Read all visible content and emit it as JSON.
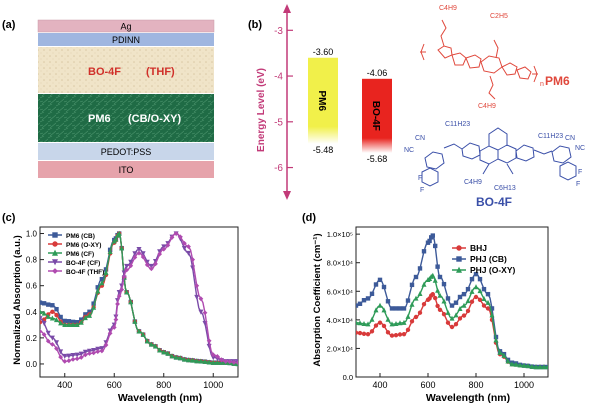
{
  "panels": {
    "a": {
      "label": "(a)",
      "layers": [
        {
          "name": "Ag",
          "color": "#e3b3c0"
        },
        {
          "name": "PDINN",
          "color": "#9fb6e0"
        },
        {
          "name": "BO-4F",
          "name2": "(THF)",
          "color": "#f0e4c8"
        },
        {
          "name": "PM6",
          "name2": "(CB/O-XY)",
          "color": "#1f6b45"
        },
        {
          "name": "PEDOT:PSS",
          "color": "#c8d6ea"
        },
        {
          "name": "ITO",
          "color": "#e6a3ab"
        }
      ]
    },
    "b": {
      "label": "(b)",
      "axis_label": "Energy Level (eV)",
      "ticks": [
        "-3",
        "-4",
        "-5",
        "-6"
      ],
      "tick_values": [
        -3,
        -4,
        -5,
        -6
      ],
      "axis_range": [
        -2.6,
        -6.6
      ],
      "bars": [
        {
          "name": "PM6",
          "lumo": "-3.60",
          "homo": "-5.48",
          "lumo_value": -3.6,
          "homo_value": -5.48,
          "color": "#f1f04a"
        },
        {
          "name": "BO-4F",
          "lumo": "-4.06",
          "homo": "-5.68",
          "lumo_value": -4.06,
          "homo_value": -5.68,
          "color": "#e8241f"
        }
      ],
      "molecule_pm6": {
        "name": "PM6",
        "sidechain_top_left": "C4H9",
        "sidechain_top_right": "C2H5",
        "sidechain_bottom": "C4H9",
        "n_label": "n",
        "color": "#e0483c"
      },
      "molecule_bo4f": {
        "name": "BO-4F",
        "sidechain_1": "C11H23",
        "sidechain_2": "C11H23",
        "sidechain_3": "C4H9",
        "sidechain_4": "C6H13",
        "cn": "CN",
        "nc": "NC",
        "f": "F",
        "color": "#3a4fa8"
      }
    },
    "c": {
      "label": "(c)",
      "ylabel": "Normalized Absorption (a.u.)",
      "xlabel": "Wavelength (nm)"
    },
    "d": {
      "label": "(d)",
      "ylabel": "Absorption Coefficient (cm⁻¹)",
      "xlabel": "Wavelength (nm)"
    }
  },
  "chart_data": [
    {
      "type": "line",
      "title": "",
      "xlabel": "Wavelength (nm)",
      "ylabel": "Normalized Absorption (a.u.)",
      "xlim": [
        300,
        1100
      ],
      "ylim": [
        -0.1,
        1.05
      ],
      "xticks": [
        400,
        600,
        800,
        1000
      ],
      "yticks": [
        0.0,
        0.2,
        0.4,
        0.6,
        0.8,
        1.0
      ],
      "xtick_labels": [
        "400",
        "600",
        "800",
        "1000"
      ],
      "ytick_labels": [
        "0.0",
        "0.2",
        "0.4",
        "0.6",
        "0.8",
        "1.0"
      ],
      "legend_position": "top-left",
      "x": [
        300,
        350,
        400,
        450,
        500,
        550,
        600,
        620,
        650,
        700,
        750,
        800,
        850,
        900,
        950,
        1000,
        1050,
        1100
      ],
      "series": [
        {
          "name": "PM6 (CB)",
          "color": "#3d5a99",
          "marker": "square",
          "values": [
            0.47,
            0.45,
            0.33,
            0.32,
            0.4,
            0.65,
            0.95,
            1.0,
            0.55,
            0.25,
            0.15,
            0.09,
            0.05,
            0.03,
            0.02,
            0.01,
            0.01,
            0.0
          ]
        },
        {
          "name": "PM6 (O-XY)",
          "color": "#d83a3a",
          "marker": "circle",
          "values": [
            0.32,
            0.4,
            0.3,
            0.3,
            0.38,
            0.6,
            0.93,
            1.0,
            0.55,
            0.25,
            0.15,
            0.09,
            0.05,
            0.03,
            0.02,
            0.01,
            0.01,
            0.0
          ]
        },
        {
          "name": "PM6 (CF)",
          "color": "#2e9b58",
          "marker": "triangle",
          "values": [
            0.4,
            0.35,
            0.3,
            0.3,
            0.37,
            0.62,
            0.94,
            1.0,
            0.55,
            0.25,
            0.15,
            0.09,
            0.05,
            0.03,
            0.02,
            0.01,
            0.01,
            0.0
          ]
        },
        {
          "name": "BO-4F (CF)",
          "color": "#7a4ba8",
          "marker": "triangle-down",
          "values": [
            0.35,
            0.2,
            0.06,
            0.07,
            0.1,
            0.12,
            0.3,
            0.55,
            0.75,
            0.88,
            0.75,
            0.9,
            1.0,
            0.85,
            0.4,
            0.05,
            0.02,
            0.02
          ]
        },
        {
          "name": "BO-4F (THF)",
          "color": "#b04bb0",
          "marker": "diamond",
          "values": [
            0.25,
            0.15,
            0.02,
            0.04,
            0.08,
            0.1,
            0.28,
            0.52,
            0.72,
            0.85,
            0.73,
            0.88,
            1.0,
            0.9,
            0.5,
            0.07,
            0.02,
            0.01
          ]
        }
      ]
    },
    {
      "type": "line",
      "title": "",
      "xlabel": "Wavelength (nm)",
      "ylabel": "Absorption Coefficient (cm⁻¹)",
      "xlim": [
        300,
        1100
      ],
      "ylim": [
        0,
        105000
      ],
      "xticks": [
        400,
        600,
        800,
        1000
      ],
      "yticks": [
        0,
        20000,
        40000,
        60000,
        80000,
        100000
      ],
      "xtick_labels": [
        "400",
        "600",
        "800",
        "1000"
      ],
      "ytick_labels": [
        "0.0",
        "2.0×10⁴",
        "4.0×10⁴",
        "6.0×10⁴",
        "8.0×10⁴",
        "1.0×10⁵"
      ],
      "legend_position": "top-right",
      "x": [
        300,
        350,
        400,
        450,
        500,
        550,
        600,
        620,
        650,
        700,
        750,
        800,
        850,
        900,
        950,
        1000,
        1050,
        1100
      ],
      "series": [
        {
          "name": "BHJ",
          "color": "#d83a3a",
          "marker": "circle",
          "values": [
            31000,
            30000,
            38000,
            29000,
            30000,
            42000,
            54000,
            58000,
            47000,
            35000,
            43000,
            56000,
            48000,
            16000,
            9000,
            8000,
            7000,
            7000
          ]
        },
        {
          "name": "PHJ (CB)",
          "color": "#3d5a99",
          "marker": "square",
          "values": [
            50000,
            55000,
            68000,
            48000,
            48000,
            70000,
            94000,
            99000,
            70000,
            50000,
            58000,
            72000,
            58000,
            18000,
            10000,
            8000,
            7000,
            7000
          ]
        },
        {
          "name": "PHJ (O-XY)",
          "color": "#2e9b58",
          "marker": "triangle",
          "values": [
            38000,
            37000,
            50000,
            37000,
            38000,
            55000,
            68000,
            71000,
            57000,
            41000,
            50000,
            63000,
            52000,
            17000,
            9000,
            8000,
            7000,
            7000
          ]
        }
      ]
    }
  ]
}
